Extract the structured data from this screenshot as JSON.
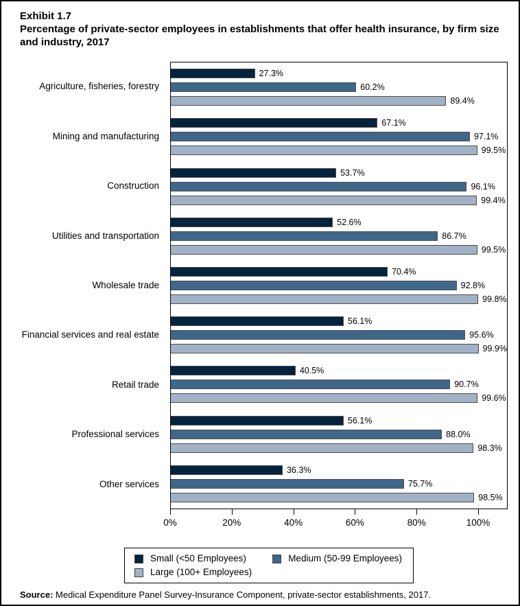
{
  "title": {
    "exhibit": "Exhibit 1.7",
    "text": "Percentage of private-sector employees in establishments that offer health insurance, by firm size and industry, 2017"
  },
  "chart_data": {
    "type": "bar",
    "orientation": "horizontal",
    "title": "Percentage of private-sector employees in establishments that offer health insurance, by firm size and industry, 2017",
    "categories": [
      "Agriculture, fisheries, forestry",
      "Mining and manufacturing",
      "Construction",
      "Utilities and transportation",
      "Wholesale trade",
      "Financial services and real estate",
      "Retail trade",
      "Professional services",
      "Other services"
    ],
    "series": [
      {
        "name": "Small (<50 Employees)",
        "color": "#04233c",
        "values": [
          27.3,
          67.1,
          53.7,
          52.6,
          70.4,
          56.1,
          40.5,
          56.1,
          36.3
        ],
        "value_labels": [
          "27.3%",
          "67.1%",
          "53.7%",
          "52.6%",
          "70.4%",
          "56.1%",
          "40.5%",
          "56.1%",
          "36.3%"
        ]
      },
      {
        "name": "Medium (50-99 Employees)",
        "color": "#3f678a",
        "values": [
          60.2,
          97.1,
          96.1,
          86.7,
          92.8,
          95.6,
          90.7,
          88.0,
          75.7
        ],
        "value_labels": [
          "60.2%",
          "97.1%",
          "96.1%",
          "86.7%",
          "92.8%",
          "95.6%",
          "90.7%",
          "88.0%",
          "75.7%"
        ]
      },
      {
        "name": "Large (100+ Employees)",
        "color": "#a1b2c6",
        "values": [
          89.4,
          99.5,
          99.4,
          99.5,
          99.8,
          99.9,
          99.6,
          98.3,
          98.5
        ],
        "value_labels": [
          "89.4%",
          "99.5%",
          "99.4%",
          "99.5%",
          "99.8%",
          "99.9%",
          "99.6%",
          "98.3%",
          "98.5%"
        ]
      }
    ],
    "xlim": [
      0,
      100
    ],
    "x_ticks": [
      {
        "value": 0,
        "label": "0%"
      },
      {
        "value": 20,
        "label": "20%"
      },
      {
        "value": 40,
        "label": "40%"
      },
      {
        "value": 60,
        "label": "60%"
      },
      {
        "value": 80,
        "label": "80%"
      },
      {
        "value": 100,
        "label": "100%"
      }
    ],
    "grid": false,
    "legend_position": "bottom",
    "bar_border_color": "#4d4d4d"
  },
  "source": {
    "label": "Source:",
    "text": " Medical Expenditure Panel Survey-Insurance Component, private-sector establishments, 2017."
  }
}
